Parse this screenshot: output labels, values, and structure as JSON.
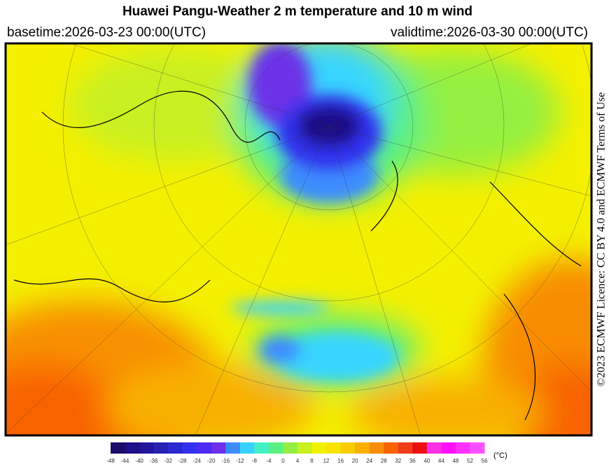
{
  "header": {
    "title": "Huawei Pangu-Weather  2 m temperature and 10 m wind",
    "basetime": "basetime:2026-03-23 00:00(UTC)",
    "validtime": "validtime:2026-03-30 00:00(UTC)"
  },
  "license": "©2023 ECMWF Licence: CC BY 4.0 and ECMWF Terms of Use",
  "colorbar": {
    "unit": "(°C)",
    "ticks": [
      -48,
      -44,
      -40,
      -36,
      -32,
      -28,
      -24,
      -20,
      -16,
      -12,
      -8,
      -4,
      0,
      4,
      8,
      12,
      16,
      20,
      24,
      28,
      32,
      36,
      40,
      44,
      48,
      52,
      56
    ],
    "colors": [
      "#1c0a6a",
      "#1f0f88",
      "#22169c",
      "#2620b4",
      "#2a2ad0",
      "#3232ee",
      "#4c2cf0",
      "#6c30e8",
      "#3c8cff",
      "#38d4ff",
      "#44f0c8",
      "#58f080",
      "#94f040",
      "#c8f020",
      "#f0f000",
      "#f8e400",
      "#f8cc00",
      "#f8b000",
      "#f88c00",
      "#f86400",
      "#f03c18",
      "#e81010",
      "#ff30e8",
      "#ff10ff",
      "#ff30ff",
      "#ff50ff"
    ]
  }
}
